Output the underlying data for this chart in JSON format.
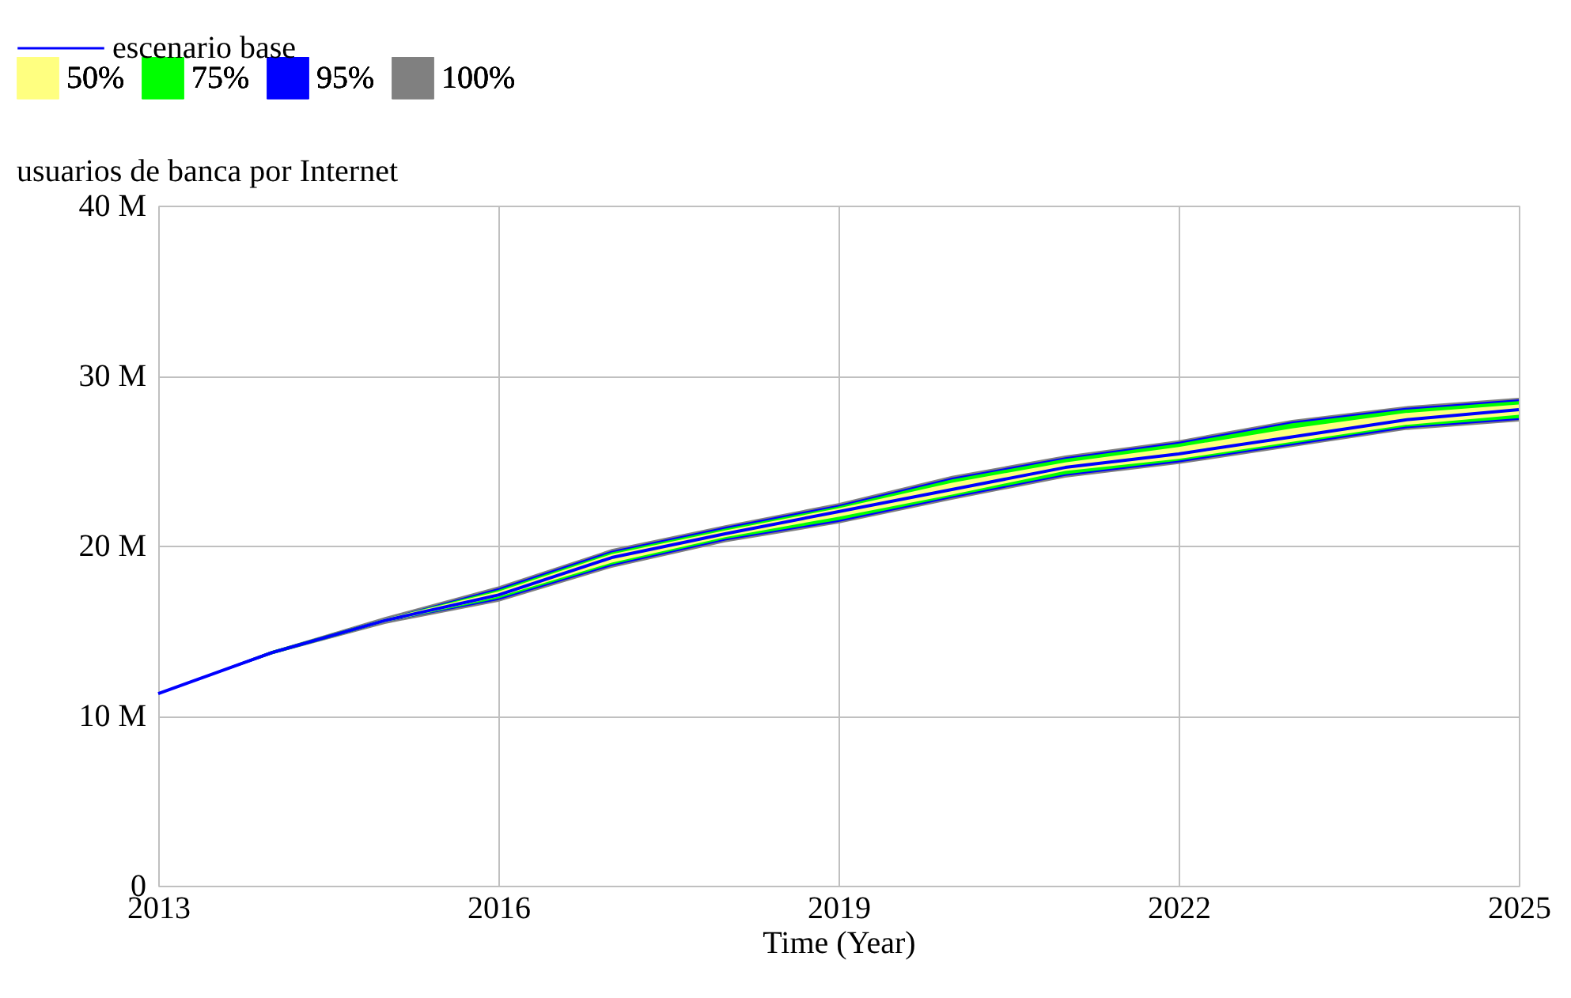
{
  "chart_data": {
    "type": "line",
    "ylabel": "usuarios de banca por Internet",
    "xlabel": "Time (Year)",
    "x": [
      2013,
      2014,
      2015,
      2016,
      2017,
      2018,
      2019,
      2020,
      2021,
      2022,
      2023,
      2024,
      2025
    ],
    "series": [
      {
        "name": "50%",
        "color": "#ffff80",
        "values": [
          null,
          null,
          null,
          null,
          null,
          null,
          null,
          null,
          null,
          null,
          null,
          null,
          null
        ],
        "lower": [
          11.3,
          13.7,
          15.5,
          17.0,
          19.0,
          20.5,
          21.7,
          23.0,
          24.4,
          25.1,
          26.1,
          27.1,
          27.7
        ],
        "upper": [
          11.3,
          13.7,
          15.7,
          17.3,
          19.5,
          20.9,
          22.2,
          23.7,
          24.9,
          25.8,
          26.9,
          27.8,
          28.3
        ]
      },
      {
        "name": "75%",
        "color": "#00ff00",
        "values": [
          null,
          null,
          null,
          null,
          null,
          null,
          null,
          null,
          null,
          null,
          null,
          null,
          null
        ],
        "lower": [
          11.3,
          13.6,
          15.5,
          16.9,
          18.9,
          20.4,
          21.5,
          22.9,
          24.2,
          25.0,
          26.0,
          27.0,
          27.5
        ],
        "upper": [
          11.3,
          13.8,
          15.7,
          17.4,
          19.6,
          21.0,
          22.3,
          23.9,
          25.1,
          26.0,
          27.2,
          28.0,
          28.5
        ]
      },
      {
        "name": "95%",
        "color": "#0000ff",
        "values": [
          null,
          null,
          null,
          null,
          null,
          null,
          null,
          null,
          null,
          null,
          null,
          null,
          null
        ],
        "lower": [
          11.3,
          13.6,
          15.5,
          16.8,
          18.8,
          20.3,
          21.4,
          22.8,
          24.1,
          24.9,
          25.9,
          26.9,
          27.4
        ],
        "upper": [
          11.3,
          13.8,
          15.7,
          17.5,
          19.7,
          21.1,
          22.4,
          24.0,
          25.2,
          26.1,
          27.3,
          28.1,
          28.6
        ]
      },
      {
        "name": "100%",
        "color": "#808080",
        "values": [
          null,
          null,
          null,
          null,
          null,
          null,
          null,
          null,
          null,
          null,
          null,
          null,
          null
        ],
        "lower": [
          11.3,
          13.6,
          15.4,
          16.7,
          18.7,
          20.2,
          21.3,
          22.7,
          24.0,
          24.8,
          25.8,
          26.8,
          27.3
        ],
        "upper": [
          11.3,
          13.8,
          15.8,
          17.6,
          19.8,
          21.2,
          22.5,
          24.1,
          25.3,
          26.2,
          27.4,
          28.2,
          28.7
        ]
      },
      {
        "name": "escenario base",
        "color": "#0000ff",
        "values": [
          11.3,
          13.7,
          15.6,
          17.1,
          19.3,
          20.7,
          22.0,
          23.3,
          24.6,
          25.4,
          26.4,
          27.4,
          28.0
        ]
      }
    ],
    "xlim": [
      2013,
      2025
    ],
    "xticks": [
      2013,
      2016,
      2019,
      2022,
      2025
    ],
    "ylim": [
      0,
      40
    ],
    "yticks": [
      0,
      {
        "value": 10,
        "label": "10 M"
      },
      {
        "value": 20,
        "label": "20 M"
      },
      {
        "value": 30,
        "label": "30 M"
      },
      {
        "value": 40,
        "label": "40 M"
      }
    ],
    "grid": true,
    "legend": "top left"
  }
}
